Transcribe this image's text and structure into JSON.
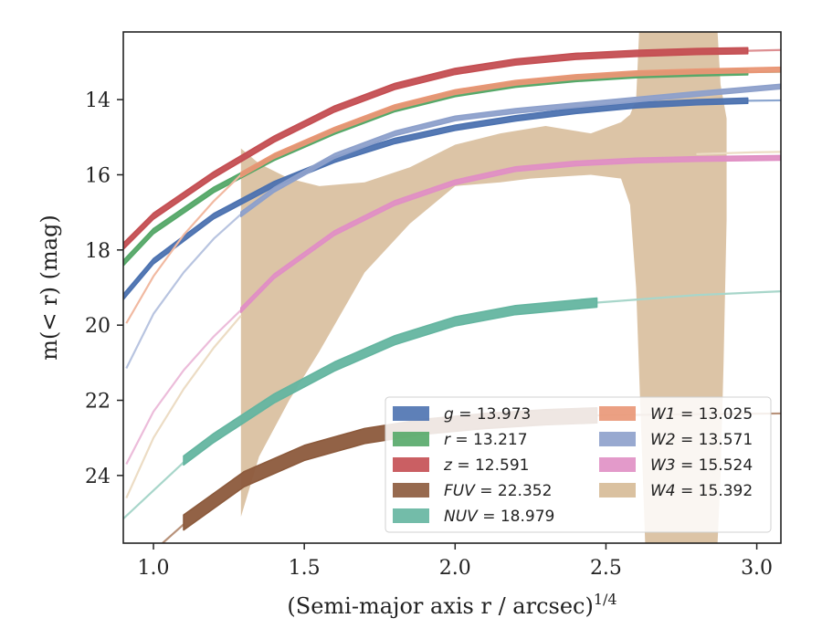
{
  "chart_data": {
    "type": "line",
    "xlabel": "(Semi-major axis r / arcsec)^{1/4}",
    "ylabel": "m(< r) (mag)",
    "xlim": [
      0.9,
      3.08
    ],
    "ylim": [
      25.8,
      12.2
    ],
    "y_inverted": true,
    "x_ticks": [
      {
        "value": 1.0,
        "label": "1.0"
      },
      {
        "value": 1.5,
        "label": "1.5"
      },
      {
        "value": 2.0,
        "label": "2.0"
      },
      {
        "value": 2.5,
        "label": "2.5"
      },
      {
        "value": 3.0,
        "label": "3.0"
      }
    ],
    "y_ticks": [
      {
        "value": 14,
        "label": "14"
      },
      {
        "value": 16,
        "label": "16"
      },
      {
        "value": 18,
        "label": "18"
      },
      {
        "value": 20,
        "label": "20"
      },
      {
        "value": 22,
        "label": "22"
      },
      {
        "value": 24,
        "label": "24"
      }
    ],
    "grid": false,
    "legend_position": "lower-right",
    "series": [
      {
        "name": "g = 13.973",
        "color": "#4c72b0",
        "faint_color": "#8aa5cf",
        "halfwidth": 0.07,
        "solid": {
          "x": [
            0.9,
            1.0,
            1.2,
            1.4,
            1.6,
            1.8,
            2.0,
            2.2,
            2.4,
            2.6,
            2.8,
            2.97
          ],
          "y": [
            19.25,
            18.3,
            17.1,
            16.25,
            15.6,
            15.1,
            14.75,
            14.5,
            14.3,
            14.15,
            14.07,
            14.03
          ]
        },
        "faint": {
          "x": [
            2.97,
            3.08
          ],
          "y": [
            14.03,
            14.02
          ]
        }
      },
      {
        "name": "r = 13.217",
        "color": "#55a868",
        "faint_color": "#94c9a1",
        "halfwidth": 0.07,
        "solid": {
          "x": [
            0.9,
            1.0,
            1.2,
            1.4,
            1.6,
            1.8,
            2.0,
            2.2,
            2.4,
            2.6,
            2.8,
            2.97
          ],
          "y": [
            18.35,
            17.5,
            16.4,
            15.55,
            14.85,
            14.25,
            13.85,
            13.6,
            13.45,
            13.35,
            13.3,
            13.27
          ]
        },
        "faint": {
          "x": [
            2.97,
            3.08
          ],
          "y": [
            13.27,
            13.26
          ]
        }
      },
      {
        "name": "z = 12.591",
        "color": "#c44e52",
        "faint_color": "#dd8f92",
        "halfwidth": 0.08,
        "solid": {
          "x": [
            0.9,
            1.0,
            1.2,
            1.4,
            1.6,
            1.8,
            2.0,
            2.2,
            2.4,
            2.6,
            2.8,
            2.97
          ],
          "y": [
            17.9,
            17.1,
            16.0,
            15.05,
            14.25,
            13.65,
            13.25,
            13.0,
            12.85,
            12.77,
            12.72,
            12.7
          ]
        },
        "faint": {
          "x": [
            2.97,
            3.08
          ],
          "y": [
            12.7,
            12.68
          ]
        }
      },
      {
        "name": "FUV = 22.352",
        "color": "#8c5a3c",
        "faint_color": "#b8927a",
        "halfwidth": 0.2,
        "faint_before": {
          "x": [
            1.03,
            1.1
          ],
          "y": [
            25.8,
            25.3
          ]
        },
        "solid": {
          "x": [
            1.1,
            1.3,
            1.5,
            1.7,
            1.9,
            2.1,
            2.3,
            2.47
          ],
          "y": [
            25.25,
            24.1,
            23.4,
            22.95,
            22.7,
            22.55,
            22.45,
            22.4
          ]
        },
        "faint": {
          "x": [
            2.47,
            2.8,
            3.08
          ],
          "y": [
            22.4,
            22.37,
            22.35
          ]
        }
      },
      {
        "name": "NUV = 18.979",
        "color": "#64b5a0",
        "faint_color": "#a8d6ca",
        "halfwidth": 0.12,
        "faint_before": {
          "x": [
            0.9,
            1.0,
            1.1
          ],
          "y": [
            25.15,
            24.4,
            23.65
          ]
        },
        "solid": {
          "x": [
            1.1,
            1.2,
            1.4,
            1.6,
            1.8,
            2.0,
            2.2,
            2.47
          ],
          "y": [
            23.6,
            23.0,
            21.95,
            21.1,
            20.4,
            19.9,
            19.6,
            19.4
          ]
        },
        "faint": {
          "x": [
            2.47,
            2.8,
            3.08
          ],
          "y": [
            19.4,
            19.2,
            19.1
          ]
        }
      },
      {
        "name": "W1 = 13.025",
        "color": "#e99675",
        "faint_color": "#f1b9a1",
        "halfwidth": 0.06,
        "faint_before": {
          "x": [
            0.91,
            1.0,
            1.1,
            1.2,
            1.29
          ],
          "y": [
            19.95,
            18.7,
            17.6,
            16.7,
            16.0
          ]
        },
        "solid": {
          "x": [
            1.29,
            1.4,
            1.6,
            1.8,
            2.0,
            2.2,
            2.4,
            2.6,
            2.8,
            3.08
          ],
          "y": [
            16.0,
            15.5,
            14.8,
            14.2,
            13.8,
            13.55,
            13.4,
            13.3,
            13.25,
            13.2
          ]
        }
      },
      {
        "name": "W2 = 13.571",
        "color": "#8da0cb",
        "faint_color": "#b8c4e0",
        "halfwidth": 0.06,
        "faint_before": {
          "x": [
            0.91,
            1.0,
            1.1,
            1.2,
            1.29
          ],
          "y": [
            21.15,
            19.7,
            18.6,
            17.7,
            17.05
          ]
        },
        "solid": {
          "x": [
            1.29,
            1.4,
            1.6,
            1.8,
            2.0,
            2.2,
            2.4,
            2.6,
            2.8,
            3.08
          ],
          "y": [
            17.05,
            16.4,
            15.5,
            14.9,
            14.5,
            14.3,
            14.15,
            14.0,
            13.85,
            13.65
          ]
        }
      },
      {
        "name": "W3 = 15.524",
        "color": "#e08fc4",
        "faint_color": "#ecbcda",
        "halfwidth": 0.06,
        "faint_before": {
          "x": [
            0.91,
            1.0,
            1.1,
            1.2,
            1.29
          ],
          "y": [
            23.7,
            22.3,
            21.2,
            20.3,
            19.6
          ]
        },
        "solid": {
          "x": [
            1.29,
            1.4,
            1.6,
            1.8,
            2.0,
            2.2,
            2.4,
            2.6,
            2.8,
            3.08
          ],
          "y": [
            19.6,
            18.7,
            17.55,
            16.75,
            16.2,
            15.85,
            15.7,
            15.62,
            15.58,
            15.55
          ]
        }
      },
      {
        "name": "W4 = 15.392",
        "color": "#d6ba96",
        "faint_color": "#ecdcc4",
        "halfwidth": 0.06,
        "faint_before": {
          "x": [
            0.91,
            1.0,
            1.1,
            1.2,
            1.29
          ],
          "y": [
            24.6,
            23.0,
            21.7,
            20.6,
            19.75
          ]
        },
        "faint": {
          "x": [
            2.8,
            3.0,
            3.08
          ],
          "y": [
            15.45,
            15.4,
            15.39
          ]
        },
        "band": {
          "upper": {
            "x": [
              1.29,
              1.35,
              1.45,
              1.55,
              1.7,
              1.85,
              2.0,
              2.15,
              2.3,
              2.45,
              2.55,
              2.58,
              2.6,
              2.61,
              2.62,
              2.87,
              2.88,
              2.9
            ],
            "y": [
              15.3,
              15.7,
              16.1,
              16.3,
              16.2,
              15.8,
              15.2,
              14.9,
              14.7,
              14.9,
              14.6,
              14.4,
              14.0,
              12.2,
              12.2,
              12.2,
              13.6,
              14.5
            ]
          },
          "lower": {
            "x": [
              2.9,
              2.89,
              2.88,
              2.87,
              2.86,
              2.63,
              2.62,
              2.6,
              2.58,
              2.55,
              2.45,
              2.35,
              2.25,
              2.15,
              2.0,
              1.85,
              1.7,
              1.55,
              1.45,
              1.35,
              1.29
            ],
            "y": [
              17.2,
              21.0,
              24.0,
              25.8,
              25.8,
              25.8,
              23.5,
              19.0,
              16.8,
              16.1,
              16.0,
              16.05,
              16.1,
              16.2,
              16.3,
              17.3,
              18.6,
              20.7,
              22.0,
              23.5,
              25.1
            ]
          }
        }
      }
    ]
  }
}
